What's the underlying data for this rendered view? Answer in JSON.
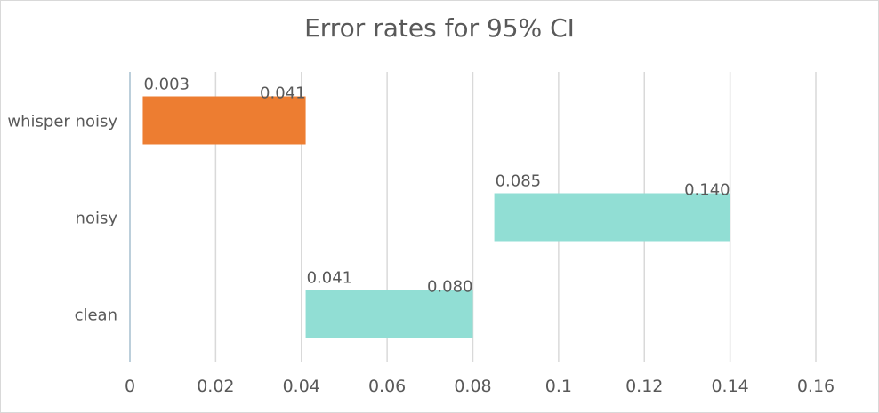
{
  "chart_data": {
    "type": "bar",
    "orientation": "horizontal",
    "title": "Error rates for 95% CI",
    "xlabel": "",
    "ylabel": "",
    "xlim": [
      0,
      0.16
    ],
    "x_ticks": [
      "0",
      "0.02",
      "0.04",
      "0.06",
      "0.08",
      "0.1",
      "0.12",
      "0.14",
      "0.16"
    ],
    "x_tick_values": [
      0,
      0.02,
      0.04,
      0.06,
      0.08,
      0.1,
      0.12,
      0.14,
      0.16
    ],
    "grid": true,
    "legend": false,
    "categories": [
      "whisper noisy",
      "noisy",
      "clean"
    ],
    "ranges": [
      {
        "category": "whisper noisy",
        "low": 0.003,
        "high": 0.041,
        "low_label": "0.003",
        "high_label": "0.041",
        "color": "#ED7D31"
      },
      {
        "category": "noisy",
        "low": 0.085,
        "high": 0.14,
        "low_label": "0.085",
        "high_label": "0.140",
        "color": "#91DED4"
      },
      {
        "category": "clean",
        "low": 0.041,
        "high": 0.08,
        "low_label": "0.041",
        "high_label": "0.080",
        "color": "#91DED4"
      }
    ]
  }
}
